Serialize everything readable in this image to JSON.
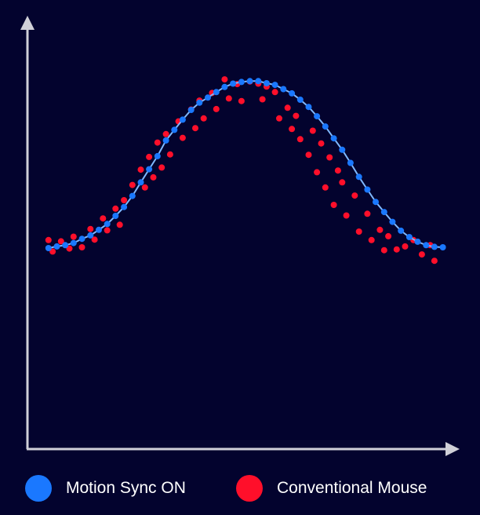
{
  "chart_data": {
    "type": "scatter",
    "title": "",
    "xlabel": "",
    "ylabel": "",
    "xlim": [
      0,
      100
    ],
    "ylim": [
      0,
      100
    ],
    "grid": false,
    "legend_position": "bottom",
    "series": [
      {
        "name": "Motion Sync ON",
        "color": "#1a78ff",
        "trend_line": true,
        "points": [
          [
            5,
            47.4
          ],
          [
            7,
            47.8
          ],
          [
            9,
            48.1
          ],
          [
            11,
            48.6
          ],
          [
            13,
            49.6
          ],
          [
            15,
            50.4
          ],
          [
            17,
            51.7
          ],
          [
            19,
            53.1
          ],
          [
            21,
            55.0
          ],
          [
            23,
            57.1
          ],
          [
            25,
            59.7
          ],
          [
            27,
            62.9
          ],
          [
            29,
            66.0
          ],
          [
            31,
            69.1
          ],
          [
            33,
            72.8
          ],
          [
            35,
            75.3
          ],
          [
            37,
            77.7
          ],
          [
            39,
            80.0
          ],
          [
            41,
            81.7
          ],
          [
            43,
            82.9
          ],
          [
            45,
            84.2
          ],
          [
            47,
            85.4
          ],
          [
            49,
            86.2
          ],
          [
            51,
            86.6
          ],
          [
            53,
            86.8
          ],
          [
            55,
            86.8
          ],
          [
            57,
            86.3
          ],
          [
            59,
            85.9
          ],
          [
            61,
            84.9
          ],
          [
            63,
            83.9
          ],
          [
            65,
            82.4
          ],
          [
            67,
            80.7
          ],
          [
            69,
            78.5
          ],
          [
            71,
            76.1
          ],
          [
            73,
            73.3
          ],
          [
            75,
            70.6
          ],
          [
            77,
            67.5
          ],
          [
            79,
            64.2
          ],
          [
            81,
            61.2
          ],
          [
            83,
            58.3
          ],
          [
            85,
            55.9
          ],
          [
            87,
            53.6
          ],
          [
            89,
            51.5
          ],
          [
            91,
            50.0
          ],
          [
            93,
            48.9
          ],
          [
            95,
            48.1
          ],
          [
            97,
            47.7
          ],
          [
            99,
            47.6
          ]
        ]
      },
      {
        "name": "Conventional Mouse",
        "color": "#ff0f2a",
        "trend_line": false,
        "points": [
          [
            5,
            49.3
          ],
          [
            6,
            46.6
          ],
          [
            8,
            49.0
          ],
          [
            10,
            47.3
          ],
          [
            11,
            50.1
          ],
          [
            13,
            47.6
          ],
          [
            15,
            51.9
          ],
          [
            16,
            49.4
          ],
          [
            18,
            54.4
          ],
          [
            19,
            51.6
          ],
          [
            21,
            56.7
          ],
          [
            22,
            52.9
          ],
          [
            23,
            58.7
          ],
          [
            25,
            62.3
          ],
          [
            27,
            65.9
          ],
          [
            28,
            61.7
          ],
          [
            29,
            68.9
          ],
          [
            30,
            64.1
          ],
          [
            31,
            72.3
          ],
          [
            32,
            66.4
          ],
          [
            33,
            74.3
          ],
          [
            34,
            69.5
          ],
          [
            36,
            77.3
          ],
          [
            37,
            73.4
          ],
          [
            39,
            80.1
          ],
          [
            40,
            75.7
          ],
          [
            41,
            82.2
          ],
          [
            42,
            78.0
          ],
          [
            44,
            84.0
          ],
          [
            45,
            80.2
          ],
          [
            47,
            87.2
          ],
          [
            48,
            82.7
          ],
          [
            50,
            86.1
          ],
          [
            51,
            82.1
          ],
          [
            53,
            86.7
          ],
          [
            55,
            86.2
          ],
          [
            56,
            82.5
          ],
          [
            57,
            85.5
          ],
          [
            59,
            84.2
          ],
          [
            60,
            78.0
          ],
          [
            62,
            80.5
          ],
          [
            63,
            75.5
          ],
          [
            64,
            78.6
          ],
          [
            65,
            73.1
          ],
          [
            67,
            69.4
          ],
          [
            68,
            75.1
          ],
          [
            69,
            65.3
          ],
          [
            70,
            72.1
          ],
          [
            71,
            61.7
          ],
          [
            72,
            68.8
          ],
          [
            73,
            57.6
          ],
          [
            74,
            65.7
          ],
          [
            75,
            62.9
          ],
          [
            76,
            55.1
          ],
          [
            78,
            59.8
          ],
          [
            79,
            51.3
          ],
          [
            81,
            55.5
          ],
          [
            82,
            49.3
          ],
          [
            84,
            51.7
          ],
          [
            85,
            46.9
          ],
          [
            86,
            50.2
          ],
          [
            88,
            47.1
          ],
          [
            90,
            47.8
          ],
          [
            92,
            49.3
          ],
          [
            94,
            45.9
          ],
          [
            96,
            48.1
          ],
          [
            97,
            44.4
          ]
        ]
      }
    ]
  },
  "legend": {
    "items": [
      {
        "label": "Motion Sync ON",
        "color": "#1a78ff"
      },
      {
        "label": "Conventional Mouse",
        "color": "#ff0f2a"
      }
    ]
  },
  "colors": {
    "background": "#03032e",
    "axis": "#d0d0d8",
    "trend_line": "#7fb8ff"
  }
}
